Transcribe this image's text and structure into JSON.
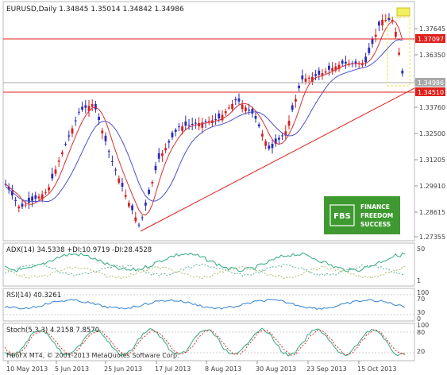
{
  "header": {
    "symbol_line": "EURUSD,Daily",
    "ohlc": "1.34845 1.35014 1.34842 1.34986"
  },
  "price_axis": {
    "ticks": [
      "1.37645",
      "1.36350",
      "1.35005",
      "1.33760",
      "1.32500",
      "1.31205",
      "1.29910",
      "1.28615",
      "1.27355"
    ],
    "labels": [
      {
        "text": "1.37097",
        "color": "#e0201c"
      },
      {
        "text": "1.34986",
        "color": "#a8a8a8"
      },
      {
        "text": "1.34510",
        "color": "#e0201c"
      }
    ]
  },
  "date_axis": [
    "10 May 2013",
    "5 Jun 2013",
    "25 Jun 2013",
    "17 Jul 2013",
    "8 Aug 2013",
    "30 Aug 2013",
    "23 Sep 2013",
    "15 Oct 2013"
  ],
  "logo": {
    "badge": "FBS",
    "lines": [
      "FINANCE",
      "FREEDOM",
      "SUCCESS"
    ],
    "color": "#3e9a30"
  },
  "adx": {
    "title": "ADX(14) 34.5338 +DI:10.9719 -DI:28.4528",
    "scale": [
      "50",
      "1"
    ]
  },
  "rsi": {
    "title": "RSI(14) 40.3261",
    "scale": [
      "100",
      "70",
      "30",
      "0"
    ]
  },
  "stoch": {
    "title": "Stoch(5,3,3) 4.2158 7.8570",
    "scale": [
      "100",
      "80",
      "20"
    ]
  },
  "copyright": "FiboFX MT4, © 2001-2013 MetaQuotes Software Corp.",
  "colors": {
    "bull": "#d42020",
    "bear": "#2a2ab8",
    "ma_fast": "#d83030",
    "ma_slow": "#5050c8",
    "hline": "#e0201c",
    "trend": "#e0201c"
  }
}
